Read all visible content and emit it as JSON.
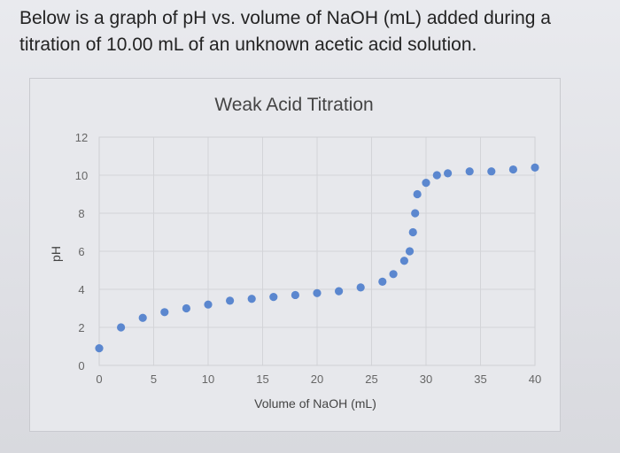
{
  "question_text": "Below is a graph of pH vs. volume of NaOH (mL) added during a titration of 10.00 mL of an unknown acetic acid solution.",
  "chart_data": {
    "type": "scatter",
    "title": "Weak Acid Titration",
    "xlabel": "Volume of NaOH (mL)",
    "ylabel": "pH",
    "xlim": [
      0,
      40
    ],
    "ylim": [
      0,
      12
    ],
    "xticks": [
      0,
      5,
      10,
      15,
      20,
      25,
      30,
      35,
      40
    ],
    "yticks": [
      0,
      2,
      4,
      6,
      8,
      10,
      12
    ],
    "grid": true,
    "legend": "none",
    "marker_color": "#5b87cf",
    "series": [
      {
        "x": [
          0,
          2,
          4,
          6,
          8,
          10,
          12,
          14,
          16,
          18,
          20,
          22,
          24,
          26,
          27,
          28,
          28.5,
          28.8,
          29,
          29.2,
          30,
          31,
          32,
          34,
          36,
          38,
          40
        ],
        "y": [
          0.9,
          2.0,
          2.5,
          2.8,
          3.0,
          3.2,
          3.4,
          3.5,
          3.6,
          3.7,
          3.8,
          3.9,
          4.1,
          4.4,
          4.8,
          5.5,
          6.0,
          7.0,
          8.0,
          9.0,
          9.6,
          10.0,
          10.1,
          10.2,
          10.2,
          10.3,
          10.4
        ]
      }
    ]
  }
}
